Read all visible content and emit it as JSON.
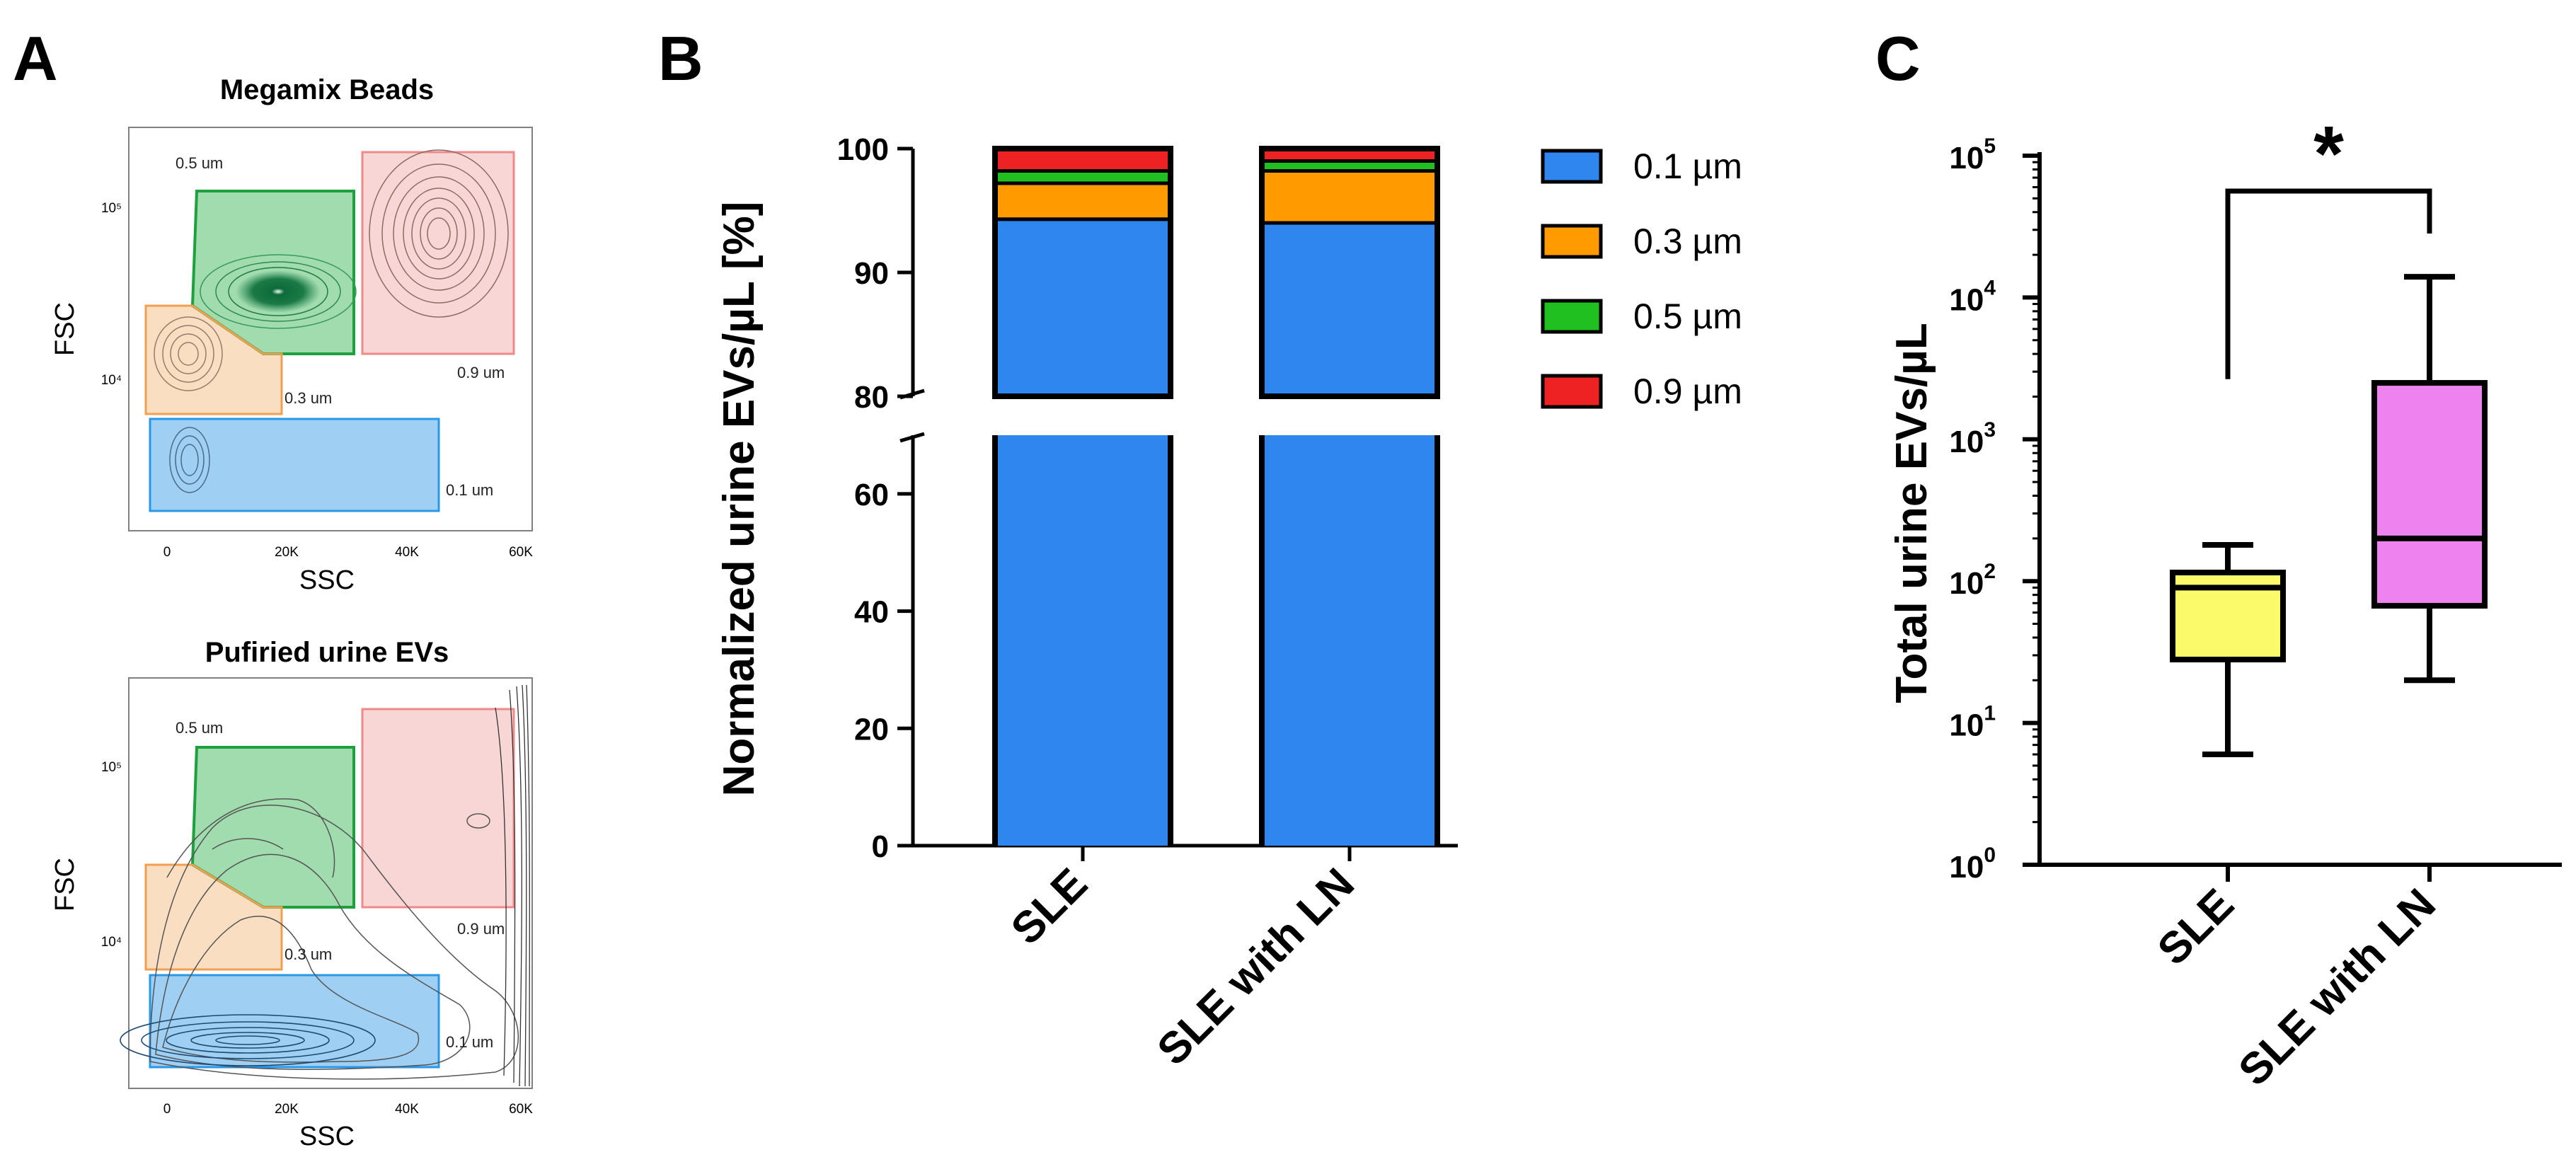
{
  "panel_a": {
    "label": "A",
    "plots": [
      {
        "title": "Megamix Beads",
        "xlabel": "SSC",
        "ylabel": "FSC",
        "x_ticks": [
          "0",
          "20K",
          "40K",
          "60K"
        ],
        "y_ticks": [
          "10⁴",
          "10⁵"
        ],
        "gates": [
          {
            "name": "0.1 um",
            "label": "0.1 um",
            "color": "#2a97e6"
          },
          {
            "name": "0.3 um",
            "label": "0.3 um",
            "color": "#f0a050"
          },
          {
            "name": "0.5 um",
            "label": "0.5 um",
            "color": "#2fb14e"
          },
          {
            "name": "0.9 um",
            "label": "0.9 um",
            "color": "#ef8a8a"
          }
        ]
      },
      {
        "title": "Pufiried urine EVs",
        "xlabel": "SSC",
        "ylabel": "FSC",
        "x_ticks": [
          "0",
          "20K",
          "40K",
          "60K"
        ],
        "y_ticks": [
          "10⁴",
          "10⁵"
        ],
        "gates": [
          {
            "name": "0.1 um",
            "label": "0.1 um",
            "color": "#2a97e6"
          },
          {
            "name": "0.3 um",
            "label": "0.3 um",
            "color": "#f0a050"
          },
          {
            "name": "0.5 um",
            "label": "0.5 um",
            "color": "#2fb14e"
          },
          {
            "name": "0.9 um",
            "label": "0.9 um",
            "color": "#ef8a8a"
          }
        ]
      }
    ]
  },
  "panel_b": {
    "label": "B"
  },
  "panel_c": {
    "label": "C"
  },
  "chart_data": [
    {
      "type": "bar",
      "stacked": true,
      "title": "",
      "xlabel": "",
      "ylabel": "Normalized urine EVs/µL [%]",
      "categories": [
        "SLE",
        "SLE with LN"
      ],
      "series": [
        {
          "name": "0.1 µm",
          "color": "#2f86ee",
          "values": [
            94.3,
            94.0
          ]
        },
        {
          "name": "0.3 µm",
          "color": "#ff9a00",
          "values": [
            2.9,
            4.2
          ]
        },
        {
          "name": "0.5 µm",
          "color": "#1fc01f",
          "values": [
            1.0,
            0.8
          ]
        },
        {
          "name": "0.9 µm",
          "color": "#ee2222",
          "values": [
            1.8,
            1.0
          ]
        }
      ],
      "y_ticks": [
        "0",
        "20",
        "40",
        "60",
        "80",
        "90",
        "100"
      ],
      "y_break": [
        70,
        80
      ],
      "ylim": [
        0,
        100
      ],
      "legend_position": "right"
    },
    {
      "type": "box",
      "scale": "log",
      "title": "",
      "xlabel": "",
      "ylabel": "Total urine EVs/µL",
      "categories": [
        "SLE",
        "SLE with LN"
      ],
      "boxes": [
        {
          "name": "SLE",
          "color": "#fafa6a",
          "min": 6,
          "q1": 28,
          "median": 90,
          "q3": 115,
          "max": 180
        },
        {
          "name": "SLE with LN",
          "color": "#ee82ee",
          "min": 20,
          "q1": 67,
          "median": 200,
          "q3": 2500,
          "max": 14000
        }
      ],
      "y_ticks": [
        {
          "base": "10",
          "exp": "0"
        },
        {
          "base": "10",
          "exp": "1"
        },
        {
          "base": "10",
          "exp": "2"
        },
        {
          "base": "10",
          "exp": "3"
        },
        {
          "base": "10",
          "exp": "4"
        },
        {
          "base": "10",
          "exp": "5"
        }
      ],
      "ylim": [
        1,
        100000
      ],
      "significance": "*"
    }
  ]
}
